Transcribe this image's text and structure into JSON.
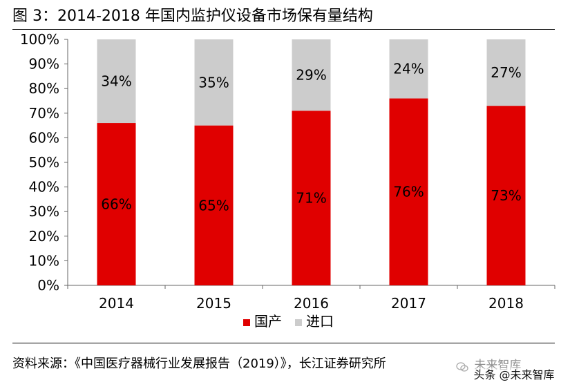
{
  "header": {
    "title": "图 3：2014-2018 年国内监护仪设备市场保有量结构"
  },
  "footer": {
    "source": "资料来源：《中国医疗器械行业发展报告（2019）》，长江证券研究所",
    "watermark": "未来智库",
    "watermark_bar": "头条 @未来智库"
  },
  "colors": {
    "domestic": "#e00000",
    "imported": "#cccccc",
    "axis": "#666666",
    "text": "#000000"
  },
  "chart_data": {
    "type": "bar",
    "stacked": true,
    "title": "",
    "xlabel": "",
    "ylabel": "",
    "ylim": [
      0,
      100
    ],
    "y_ticks": [
      "0%",
      "10%",
      "20%",
      "30%",
      "40%",
      "50%",
      "60%",
      "70%",
      "80%",
      "90%",
      "100%"
    ],
    "categories": [
      "2014",
      "2015",
      "2016",
      "2017",
      "2018"
    ],
    "series": [
      {
        "name": "国产",
        "values": [
          66,
          65,
          71,
          76,
          73
        ],
        "labels": [
          "66%",
          "65%",
          "71%",
          "76%",
          "73%"
        ]
      },
      {
        "name": "进口",
        "values": [
          34,
          35,
          29,
          24,
          27
        ],
        "labels": [
          "34%",
          "35%",
          "29%",
          "24%",
          "27%"
        ]
      }
    ],
    "legend_position": "bottom",
    "grid": false
  }
}
